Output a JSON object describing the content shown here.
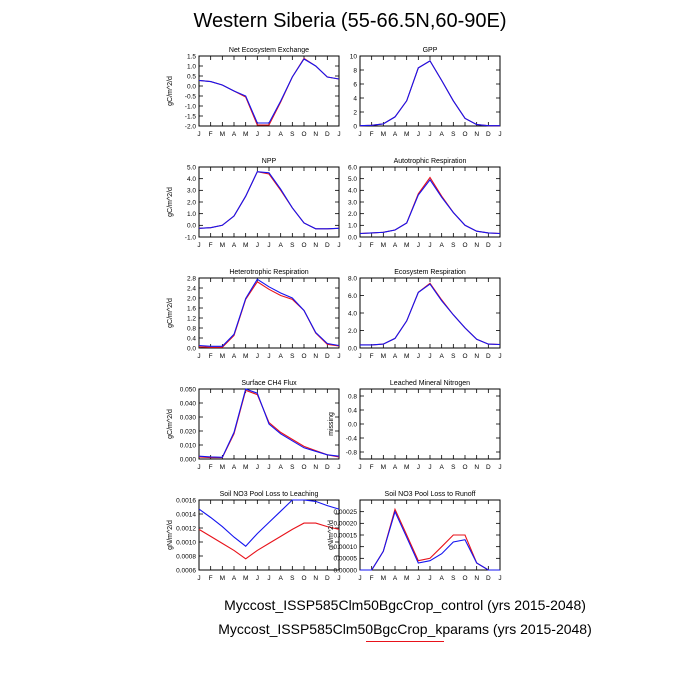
{
  "figure": {
    "title": "Western Siberia (55-66.5N,60-90E)",
    "months": [
      "J",
      "F",
      "M",
      "A",
      "M",
      "J",
      "J",
      "A",
      "S",
      "O",
      "N",
      "D",
      "J"
    ],
    "series_colors": {
      "control": "#e8121a",
      "kparams": "#1414f0"
    },
    "legend": {
      "control_label": "Myccost_ISSP585Clm50BgcCrop_control (yrs 2015-2048)",
      "kparams_label": "Myccost_ISSP585Clm50BgcCrop_kparams (yrs 2015-2048)"
    }
  },
  "chart_data": [
    {
      "type": "line",
      "title": "Net Ecosystem Exchange",
      "ylabel": "gC/m^2/d",
      "ylim": [
        -2.0,
        1.5
      ],
      "yticks": [
        "1.5",
        "1.0",
        "0.5",
        "0.0",
        "-0.5",
        "-1.0",
        "-1.5",
        "-2.0"
      ],
      "ytick_values": [
        1.5,
        1.0,
        0.5,
        0.0,
        -0.5,
        -1.0,
        -1.5,
        -2.0
      ],
      "series": [
        {
          "name": "control",
          "values": [
            0.28,
            0.22,
            0.05,
            -0.25,
            -0.55,
            -1.95,
            -1.95,
            -0.8,
            0.45,
            1.38,
            1.0,
            0.45,
            0.35
          ]
        },
        {
          "name": "kparams",
          "values": [
            0.28,
            0.22,
            0.05,
            -0.25,
            -0.5,
            -1.85,
            -1.85,
            -0.75,
            0.45,
            1.35,
            1.0,
            0.45,
            0.35
          ]
        }
      ]
    },
    {
      "type": "line",
      "title": "GPP",
      "ylabel": "",
      "ylim": [
        0,
        10
      ],
      "yticks": [
        "10",
        "8",
        "6",
        "4",
        "2",
        "0"
      ],
      "ytick_values": [
        10,
        8,
        6,
        4,
        2,
        0
      ],
      "series": [
        {
          "name": "control",
          "values": [
            0.05,
            0.1,
            0.3,
            1.3,
            3.6,
            8.3,
            9.3,
            6.5,
            3.6,
            1.1,
            0.2,
            0.05,
            0.05
          ]
        },
        {
          "name": "kparams",
          "values": [
            0.05,
            0.1,
            0.3,
            1.3,
            3.6,
            8.3,
            9.3,
            6.5,
            3.6,
            1.1,
            0.2,
            0.05,
            0.05
          ]
        }
      ]
    },
    {
      "type": "line",
      "title": "NPP",
      "ylabel": "gC/m^2/d",
      "ylim": [
        -1.0,
        5.0
      ],
      "yticks": [
        "5.0",
        "4.0",
        "3.0",
        "2.0",
        "1.0",
        "0.0",
        "-1.0"
      ],
      "ytick_values": [
        5,
        4,
        3,
        2,
        1,
        0,
        -1
      ],
      "series": [
        {
          "name": "control",
          "values": [
            -0.25,
            -0.2,
            0.0,
            0.8,
            2.5,
            4.6,
            4.4,
            3.0,
            1.5,
            0.2,
            -0.3,
            -0.3,
            -0.25
          ]
        },
        {
          "name": "kparams",
          "values": [
            -0.25,
            -0.2,
            0.0,
            0.8,
            2.5,
            4.6,
            4.5,
            3.1,
            1.5,
            0.2,
            -0.3,
            -0.3,
            -0.25
          ]
        }
      ]
    },
    {
      "type": "line",
      "title": "Autotrophic Respiration",
      "ylabel": "",
      "ylim": [
        0,
        6
      ],
      "yticks": [
        "6.0",
        "5.0",
        "4.0",
        "3.0",
        "2.0",
        "1.0",
        "0.0"
      ],
      "ytick_values": [
        6,
        5,
        4,
        3,
        2,
        1,
        0
      ],
      "series": [
        {
          "name": "control",
          "values": [
            0.3,
            0.35,
            0.4,
            0.6,
            1.2,
            3.7,
            5.1,
            3.5,
            2.1,
            1.0,
            0.5,
            0.35,
            0.3
          ]
        },
        {
          "name": "kparams",
          "values": [
            0.3,
            0.35,
            0.4,
            0.6,
            1.2,
            3.6,
            4.9,
            3.4,
            2.1,
            1.0,
            0.5,
            0.35,
            0.3
          ]
        }
      ]
    },
    {
      "type": "line",
      "title": "Heterotrophic Respiration",
      "ylabel": "gC/m^2/d",
      "ylim": [
        0,
        2.8
      ],
      "yticks": [
        "2.8",
        "2.4",
        "2.0",
        "1.6",
        "1.2",
        "0.8",
        "0.4",
        "0.0"
      ],
      "ytick_values": [
        2.8,
        2.4,
        2.0,
        1.6,
        1.2,
        0.8,
        0.4,
        0.0
      ],
      "series": [
        {
          "name": "control",
          "values": [
            0.05,
            0.03,
            0.03,
            0.5,
            1.95,
            2.65,
            2.35,
            2.1,
            1.95,
            1.5,
            0.6,
            0.15,
            0.08
          ]
        },
        {
          "name": "kparams",
          "values": [
            0.1,
            0.07,
            0.07,
            0.55,
            1.98,
            2.75,
            2.45,
            2.2,
            2.0,
            1.5,
            0.62,
            0.18,
            0.1
          ]
        }
      ]
    },
    {
      "type": "line",
      "title": "Ecosystem Respiration",
      "ylabel": "",
      "ylim": [
        0,
        8
      ],
      "yticks": [
        "8.0",
        "6.0",
        "4.0",
        "2.0",
        "0.0"
      ],
      "ytick_values": [
        8,
        6,
        4,
        2,
        0
      ],
      "series": [
        {
          "name": "control",
          "values": [
            0.35,
            0.35,
            0.45,
            1.1,
            3.1,
            6.35,
            7.4,
            5.5,
            3.8,
            2.3,
            1.0,
            0.45,
            0.4
          ]
        },
        {
          "name": "kparams",
          "values": [
            0.35,
            0.35,
            0.45,
            1.1,
            3.1,
            6.35,
            7.3,
            5.4,
            3.8,
            2.3,
            1.0,
            0.45,
            0.4
          ]
        }
      ]
    },
    {
      "type": "line",
      "title": "Surface CH4 Flux",
      "ylabel": "gC/m^2/d",
      "ylim": [
        0,
        0.05
      ],
      "yticks": [
        "0.050",
        "0.040",
        "0.030",
        "0.020",
        "0.010",
        "0.000"
      ],
      "ytick_values": [
        0.05,
        0.04,
        0.03,
        0.02,
        0.01,
        0.0
      ],
      "series": [
        {
          "name": "control",
          "values": [
            0.0015,
            0.001,
            0.001,
            0.018,
            0.049,
            0.046,
            0.026,
            0.019,
            0.014,
            0.009,
            0.006,
            0.003,
            0.0015
          ]
        },
        {
          "name": "kparams",
          "values": [
            0.002,
            0.0015,
            0.0012,
            0.019,
            0.05,
            0.047,
            0.025,
            0.018,
            0.013,
            0.008,
            0.0055,
            0.003,
            0.002
          ]
        }
      ]
    },
    {
      "type": "line",
      "title": "Leached Mineral Nitrogen",
      "ylabel": "missing",
      "ylim": [
        -1.0,
        1.0
      ],
      "yticks": [
        "0.8",
        "0.4",
        "0.0",
        "-0.4",
        "-0.8"
      ],
      "ytick_values": [
        0.8,
        0.4,
        0.0,
        -0.4,
        -0.8
      ],
      "series": []
    },
    {
      "type": "line",
      "title": "Soil NO3 Pool Loss to Leaching",
      "ylabel": "gN/m^2/d",
      "ylim": [
        0.0006,
        0.0016
      ],
      "yticks": [
        "0.0016",
        "0.0014",
        "0.0012",
        "0.0010",
        "0.0008",
        "0.0006"
      ],
      "ytick_values": [
        0.0016,
        0.0014,
        0.0012,
        0.001,
        0.0008,
        0.0006
      ],
      "series": [
        {
          "name": "control",
          "values": [
            0.00118,
            0.00108,
            0.00098,
            0.00088,
            0.00076,
            0.00088,
            0.00098,
            0.00108,
            0.00118,
            0.00127,
            0.00127,
            0.00122,
            0.00118
          ]
        },
        {
          "name": "kparams",
          "values": [
            0.00147,
            0.00135,
            0.00122,
            0.00107,
            0.00094,
            0.00112,
            0.00128,
            0.00144,
            0.0016,
            0.0016,
            0.00158,
            0.00152,
            0.00147
          ]
        }
      ]
    },
    {
      "type": "line",
      "title": "Soil NO3 Pool Loss to Runoff",
      "ylabel": "gN/m^2/d",
      "ylim": [
        0,
        0.0003
      ],
      "yticks": [
        "0.00025",
        "0.00020",
        "0.00015",
        "0.00010",
        "0.00005",
        "0.00000"
      ],
      "ytick_values": [
        0.00025,
        0.0002,
        0.00015,
        0.0001,
        5e-05,
        0.0
      ],
      "series": [
        {
          "name": "control",
          "values": [
            0.0,
            0.0,
            8e-05,
            0.00026,
            0.00015,
            4e-05,
            5e-05,
            0.0001,
            0.00015,
            0.00015,
            3e-05,
            0.0,
            0.0
          ]
        },
        {
          "name": "kparams",
          "values": [
            0.0,
            0.0,
            8e-05,
            0.00025,
            0.00014,
            3e-05,
            4e-05,
            7e-05,
            0.00012,
            0.00013,
            3e-05,
            0.0,
            0.0
          ]
        }
      ]
    }
  ]
}
